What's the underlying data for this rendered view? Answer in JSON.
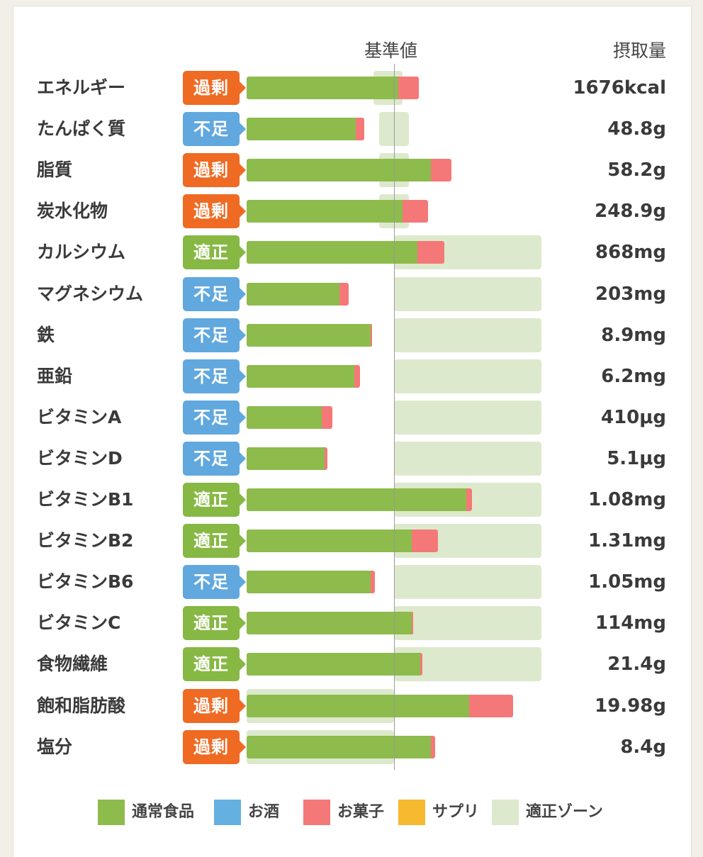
{
  "colors": {
    "food": "#8dbb4c",
    "alcohol": "#64b0e0",
    "snack": "#f47878",
    "supplement": "#f7b92f",
    "zone": "#dde9cc",
    "excess": "#ef6a22",
    "deficient": "#60a8de",
    "adequate": "#86b843"
  },
  "header": {
    "reference_label": "基準値",
    "intake_label": "摂取量"
  },
  "status_labels": {
    "excess": "過剰",
    "deficient": "不足",
    "adequate": "適正"
  },
  "chart_data": {
    "type": "bar",
    "orientation": "horizontal",
    "stacked": true,
    "scale_unit": "percent of reference value",
    "reference_value": 100,
    "xlim": [
      0,
      200
    ],
    "series": [
      {
        "key": "food",
        "name": "通常食品"
      },
      {
        "key": "alcohol",
        "name": "お酒"
      },
      {
        "key": "snack",
        "name": "お菓子"
      },
      {
        "key": "supplement",
        "name": "サプリ"
      },
      {
        "key": "zone",
        "name": "適正ゾーン"
      }
    ],
    "rows": [
      {
        "name": "エネルギー",
        "status": "excess",
        "food": 103,
        "snack": 14,
        "zone": [
          86,
          106
        ],
        "value_label": "1676kcal"
      },
      {
        "name": "たんぱく質",
        "status": "deficient",
        "food": 74,
        "snack": 6,
        "zone": [
          90,
          110
        ],
        "value_label": "48.8g"
      },
      {
        "name": "脂質",
        "status": "excess",
        "food": 125,
        "snack": 14,
        "zone": [
          90,
          110
        ],
        "value_label": "58.2g"
      },
      {
        "name": "炭水化物",
        "status": "excess",
        "food": 106,
        "snack": 17,
        "zone": [
          90,
          110
        ],
        "value_label": "248.9g"
      },
      {
        "name": "カルシウム",
        "status": "adequate",
        "food": 116,
        "snack": 18,
        "zone": [
          100,
          200
        ],
        "value_label": "868mg"
      },
      {
        "name": "マグネシウム",
        "status": "deficient",
        "food": 63,
        "snack": 6,
        "zone": [
          100,
          200
        ],
        "value_label": "203mg"
      },
      {
        "name": "鉄",
        "status": "deficient",
        "food": 84,
        "snack": 1,
        "zone": [
          100,
          200
        ],
        "value_label": "8.9mg"
      },
      {
        "name": "亜鉛",
        "status": "deficient",
        "food": 73,
        "snack": 4,
        "zone": [
          100,
          200
        ],
        "value_label": "6.2mg"
      },
      {
        "name": "ビタミンA",
        "status": "deficient",
        "food": 51,
        "snack": 7,
        "zone": [
          100,
          200
        ],
        "value_label": "410μg"
      },
      {
        "name": "ビタミンD",
        "status": "deficient",
        "food": 53,
        "snack": 2,
        "zone": [
          100,
          200
        ],
        "value_label": "5.1μg"
      },
      {
        "name": "ビタミンB1",
        "status": "adequate",
        "food": 149,
        "snack": 4,
        "zone": [
          100,
          200
        ],
        "value_label": "1.08mg"
      },
      {
        "name": "ビタミンB2",
        "status": "adequate",
        "food": 112,
        "snack": 18,
        "zone": [
          100,
          200
        ],
        "value_label": "1.31mg"
      },
      {
        "name": "ビタミンB6",
        "status": "deficient",
        "food": 84,
        "snack": 3,
        "zone": [
          100,
          200
        ],
        "value_label": "1.05mg"
      },
      {
        "name": "ビタミンC",
        "status": "adequate",
        "food": 112,
        "snack": 1,
        "zone": [
          100,
          200
        ],
        "value_label": "114mg"
      },
      {
        "name": "食物繊維",
        "status": "adequate",
        "food": 118,
        "snack": 1,
        "zone": [
          100,
          200
        ],
        "value_label": "21.4g"
      },
      {
        "name": "飽和脂肪酸",
        "status": "excess",
        "food": 151,
        "snack": 30,
        "zone": [
          0,
          100
        ],
        "value_label": "19.98g"
      },
      {
        "name": "塩分",
        "status": "excess",
        "food": 125,
        "snack": 3,
        "zone": [
          0,
          100
        ],
        "value_label": "8.4g"
      }
    ]
  },
  "legend": [
    {
      "label": "通常食品",
      "color": "#8dbb4c"
    },
    {
      "label": "お酒",
      "color": "#64b0e0"
    },
    {
      "label": "お菓子",
      "color": "#f47878"
    },
    {
      "label": "サプリ",
      "color": "#f7b92f"
    },
    {
      "label": "適正ゾーン",
      "color": "#dde9cc"
    }
  ]
}
